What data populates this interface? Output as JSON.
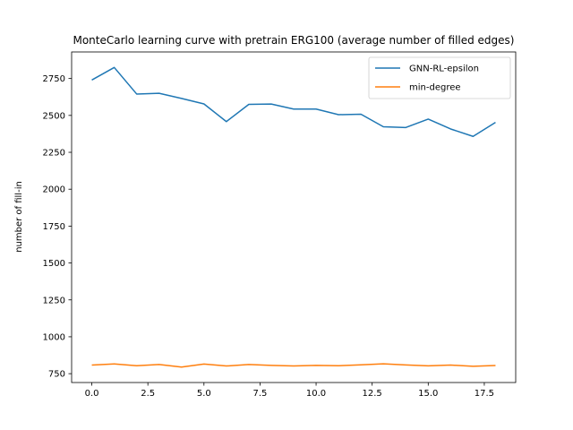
{
  "chart_data": {
    "type": "line",
    "title": "MonteCarlo learning curve with pretrain ERG100 (average number of filled edges)",
    "xlabel": "",
    "ylabel": "number of fill-in",
    "xlim": [
      -0.9,
      18.9
    ],
    "ylim": [
      690,
      2930
    ],
    "xticks": [
      0.0,
      2.5,
      5.0,
      7.5,
      10.0,
      12.5,
      15.0,
      17.5
    ],
    "xtick_labels": [
      "0.0",
      "2.5",
      "5.0",
      "7.5",
      "10.0",
      "12.5",
      "15.0",
      "17.5"
    ],
    "yticks": [
      750,
      1000,
      1250,
      1500,
      1750,
      2000,
      2250,
      2500,
      2750
    ],
    "ytick_labels": [
      "750",
      "1000",
      "1250",
      "1500",
      "1750",
      "2000",
      "2250",
      "2500",
      "2750"
    ],
    "legend_position": "top-right",
    "x": [
      0,
      1,
      2,
      3,
      4,
      5,
      6,
      7,
      8,
      9,
      10,
      11,
      12,
      13,
      14,
      15,
      16,
      17,
      18
    ],
    "series": [
      {
        "name": "GNN-RL-epsilon",
        "color": "#1f77b4",
        "values": [
          2740,
          2825,
          2645,
          2650,
          2615,
          2578,
          2458,
          2575,
          2577,
          2543,
          2543,
          2505,
          2508,
          2423,
          2418,
          2475,
          2408,
          2358,
          2453
        ]
      },
      {
        "name": "min-degree",
        "color": "#ff7f0e",
        "values": [
          808,
          816,
          804,
          812,
          795,
          815,
          802,
          812,
          806,
          802,
          806,
          804,
          810,
          817,
          809,
          803,
          808,
          800,
          805
        ]
      }
    ]
  }
}
